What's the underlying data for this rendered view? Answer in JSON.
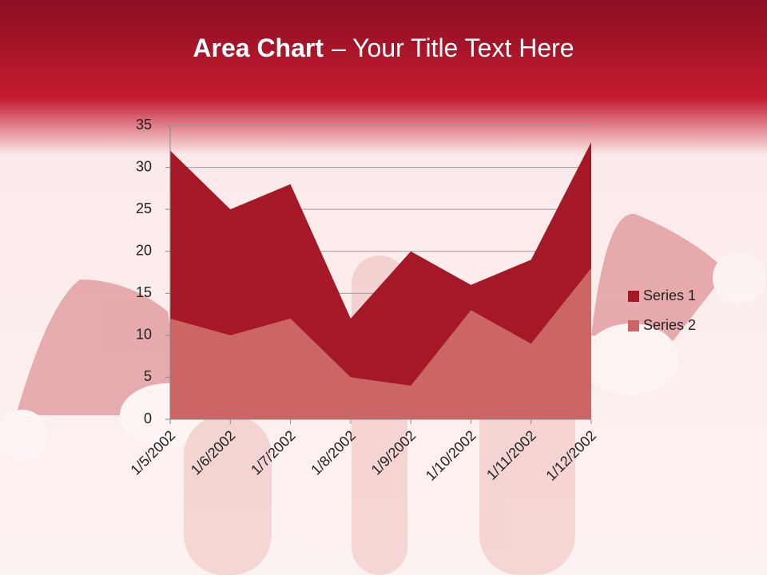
{
  "chart_data": {
    "type": "area",
    "title": "Area Chart",
    "title_suffix": "– Your Title Text Here",
    "categories": [
      "1/5/2002",
      "1/6/2002",
      "1/7/2002",
      "1/8/2002",
      "1/9/2002",
      "1/10/2002",
      "1/11/2002",
      "1/12/2002"
    ],
    "series": [
      {
        "name": "Series 1",
        "color": "#a51828",
        "values": [
          32,
          25,
          28,
          12,
          20,
          16,
          19,
          33
        ]
      },
      {
        "name": "Series 2",
        "color": "#cc6666",
        "values": [
          12,
          10,
          12,
          5,
          4,
          13,
          9,
          18
        ]
      }
    ],
    "ylim": [
      0,
      35
    ],
    "yticks": [
      0,
      5,
      10,
      15,
      20,
      25,
      30,
      35
    ],
    "grid": true,
    "legend": "right"
  }
}
